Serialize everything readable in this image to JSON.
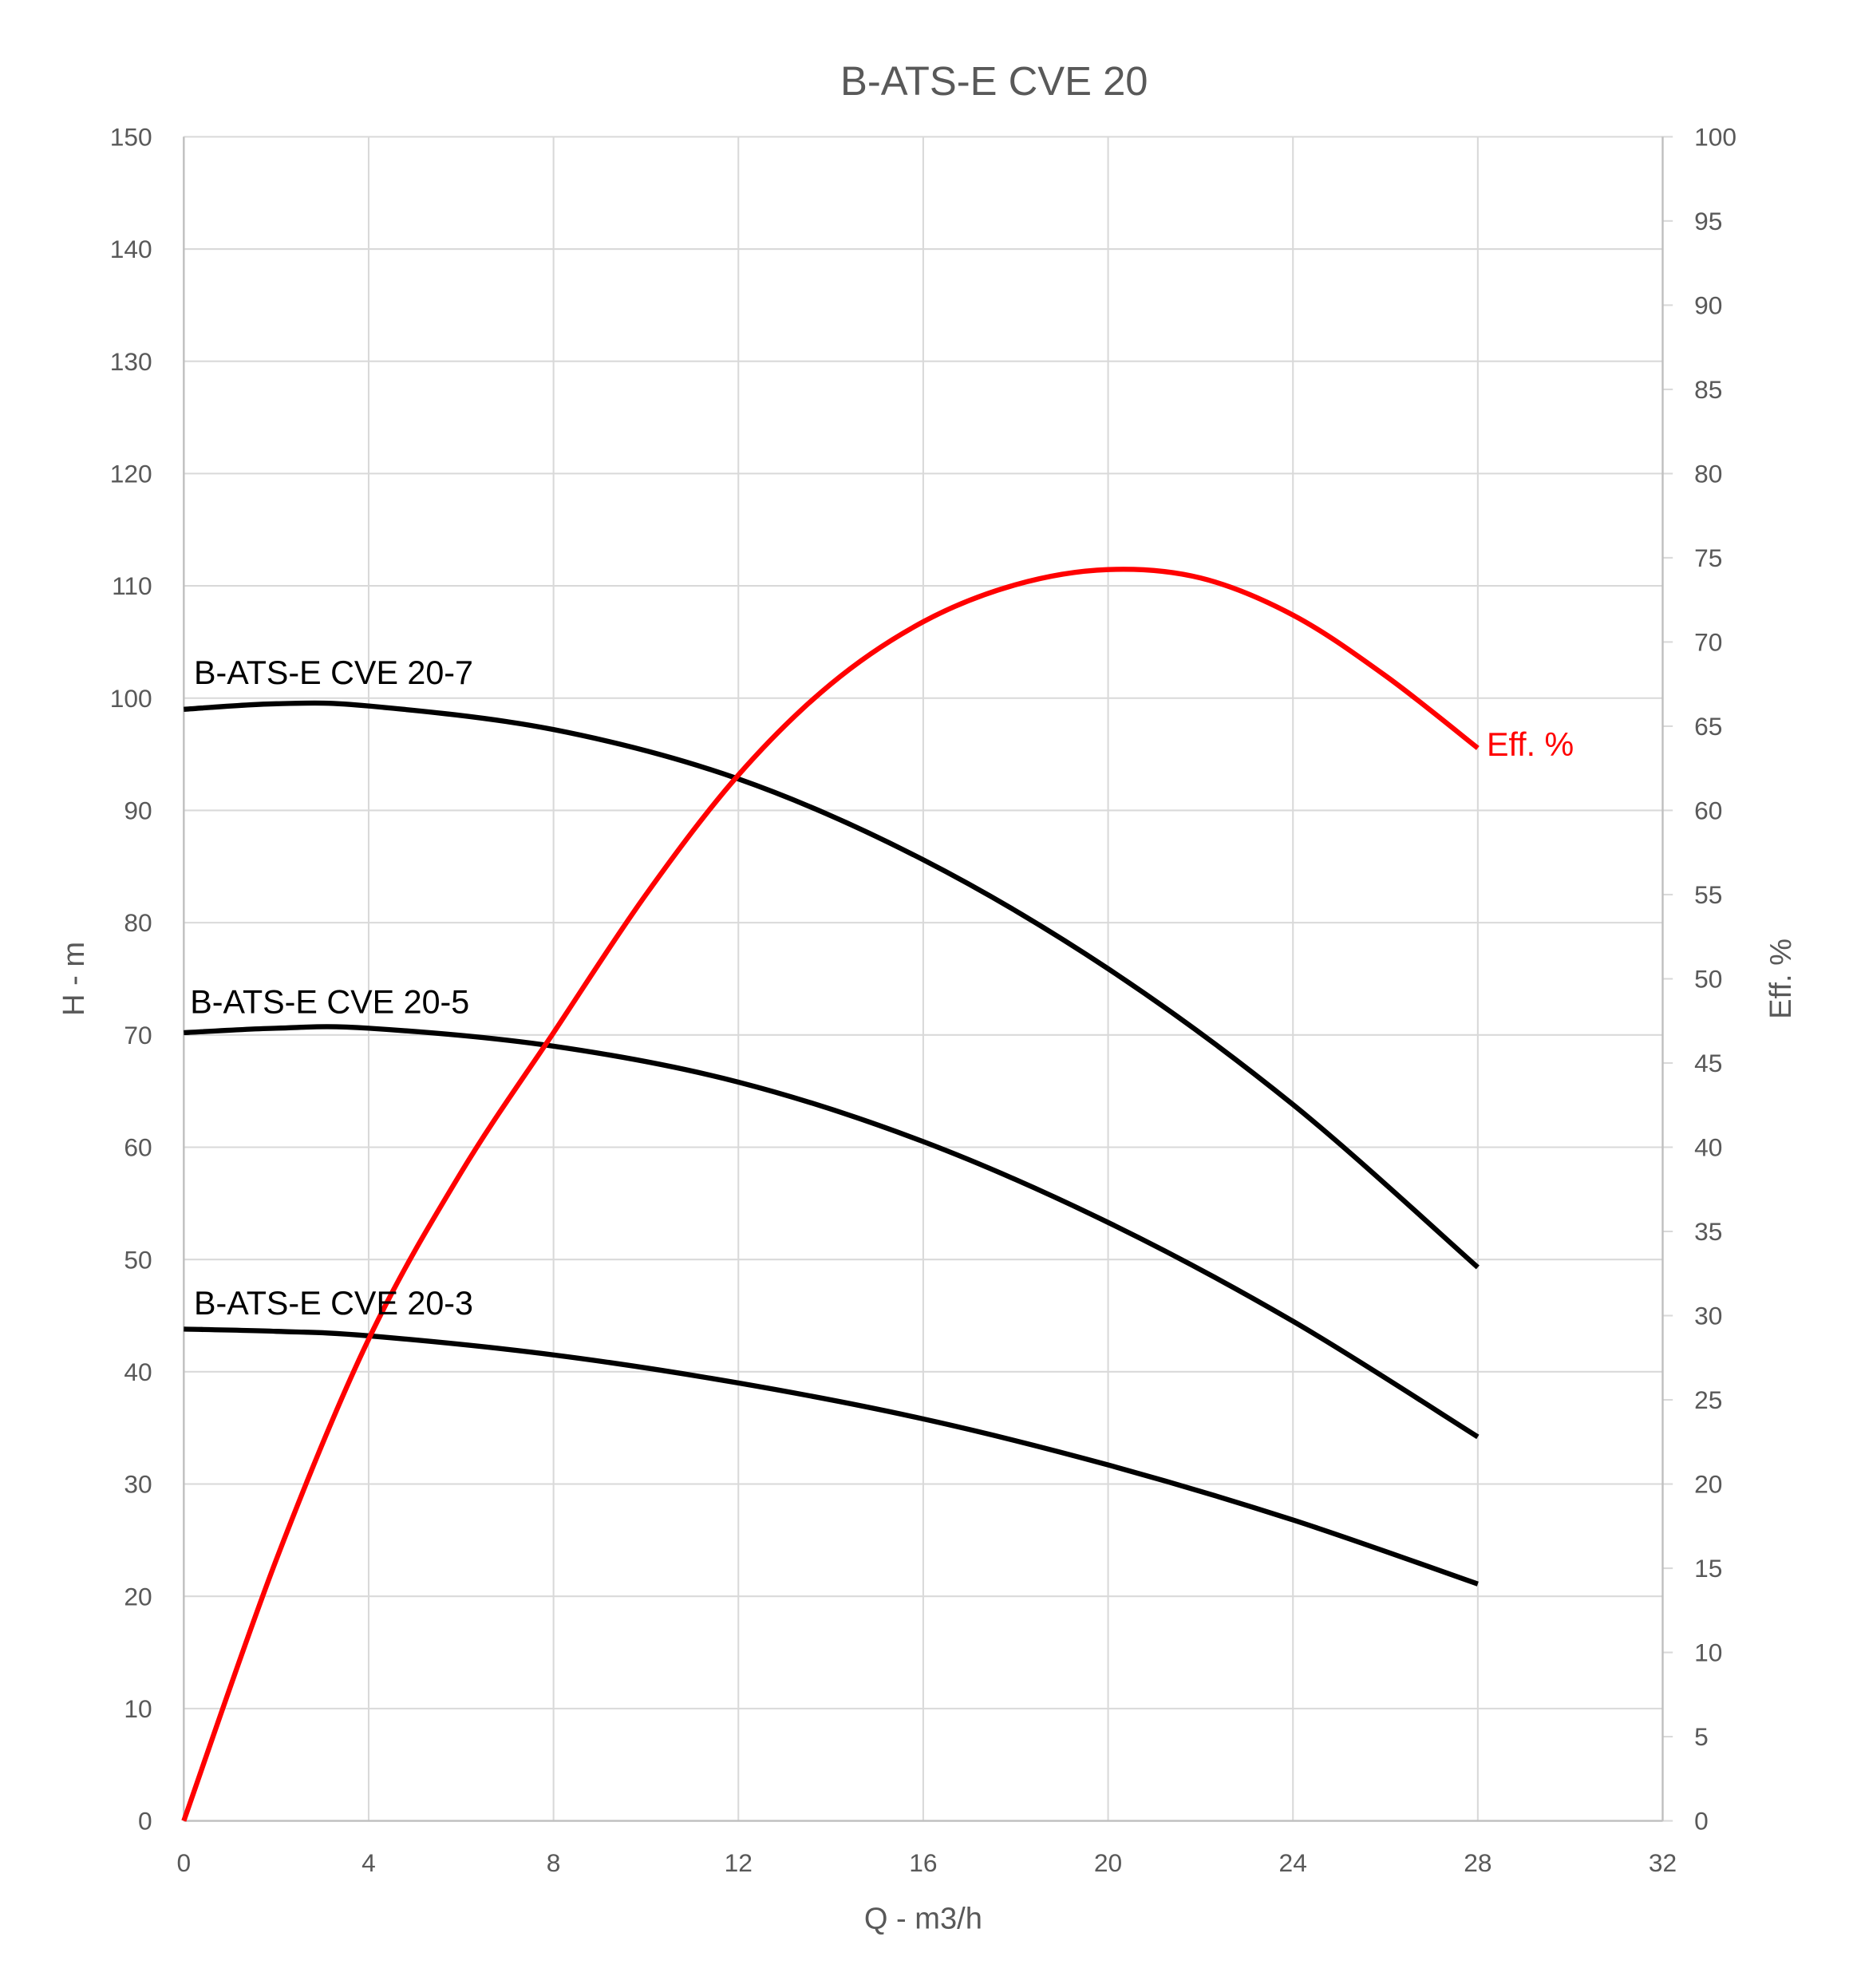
{
  "chart_data": {
    "type": "line",
    "title": "B-ATS-E CVE 20",
    "xlabel": "Q - m3/h",
    "ylabel": "H - m",
    "y2label": "Eff. %",
    "xlim": [
      0,
      32
    ],
    "ylim": [
      0,
      150
    ],
    "y2lim": [
      0,
      100
    ],
    "xticks": [
      0,
      4,
      8,
      12,
      16,
      20,
      24,
      28,
      32
    ],
    "yticks": [
      0,
      10,
      20,
      30,
      40,
      50,
      60,
      70,
      80,
      90,
      100,
      110,
      120,
      130,
      140,
      150
    ],
    "y2ticks": [
      0,
      5,
      10,
      15,
      20,
      25,
      30,
      35,
      40,
      45,
      50,
      55,
      60,
      65,
      70,
      75,
      80,
      85,
      90,
      95,
      100
    ],
    "grid": true,
    "series": [
      {
        "name": "B-ATS-E CVE 20-7",
        "axis": "left",
        "color": "#000000",
        "x": [
          0,
          2,
          4,
          8,
          12,
          16,
          20,
          24,
          28
        ],
        "y": [
          99,
          99.5,
          99.3,
          97.2,
          92.8,
          85.6,
          75.9,
          63.8,
          49.3
        ]
      },
      {
        "name": "B-ATS-E CVE 20-5",
        "axis": "left",
        "color": "#000000",
        "x": [
          0,
          2,
          4,
          8,
          12,
          16,
          20,
          24,
          28
        ],
        "y": [
          70.2,
          70.6,
          70.6,
          69,
          65.8,
          60.5,
          53.3,
          44.5,
          34.2
        ]
      },
      {
        "name": "B-ATS-E CVE 20-3",
        "axis": "left",
        "color": "#000000",
        "x": [
          0,
          2,
          4,
          8,
          12,
          16,
          20,
          24,
          28
        ],
        "y": [
          43.8,
          43.6,
          43.2,
          41.5,
          39,
          35.8,
          31.7,
          26.8,
          21.1
        ]
      },
      {
        "name": "Eff. %",
        "axis": "right",
        "color": "#ff0000",
        "x": [
          0,
          2,
          4,
          6,
          8,
          10,
          12,
          14,
          16,
          18,
          20,
          22,
          24,
          26,
          28
        ],
        "y": [
          0,
          15.5,
          28.6,
          38.5,
          46.8,
          55,
          62.1,
          67.5,
          71.2,
          73.4,
          74.3,
          73.8,
          71.6,
          68,
          63.7
        ]
      }
    ]
  }
}
